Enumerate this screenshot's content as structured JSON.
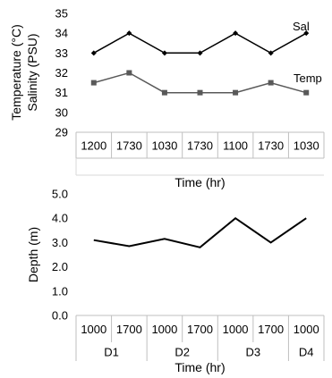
{
  "charts": [
    {
      "chart_data": {
        "type": "line",
        "categories": [
          "1200",
          "1730",
          "1030",
          "1730",
          "1100",
          "1730",
          "1030"
        ],
        "series": [
          {
            "name": "Sal",
            "values": [
              33,
              34,
              33,
              33,
              34,
              33,
              34
            ],
            "marker": "diamond",
            "color": "#000000"
          },
          {
            "name": "Temp",
            "values": [
              31.5,
              32,
              31,
              31,
              31,
              31.5,
              31
            ],
            "marker": "square",
            "color": "#595959"
          }
        ],
        "ylabel_line1": "Temperature (°C)",
        "ylabel_line2": "Salinity (PSU)",
        "xlabel": "Time (hr)",
        "ylim": [
          29,
          35
        ],
        "yticks": [
          "29",
          "30",
          "31",
          "32",
          "33",
          "34",
          "35"
        ],
        "grid": false
      }
    },
    {
      "chart_data": {
        "type": "line",
        "categories": [
          "1000",
          "1700",
          "1000",
          "1700",
          "1000",
          "1700",
          "1000"
        ],
        "groups": [
          "D1",
          "D2",
          "D3",
          "D4"
        ],
        "series": [
          {
            "values": [
              3.1,
              2.85,
              3.15,
              2.8,
              4.0,
              3.0,
              4.0
            ],
            "color": "#000000"
          }
        ],
        "ylabel": "Depth (m)",
        "xlabel": "Time  (hr)",
        "ylim": [
          0,
          5
        ],
        "yticks": [
          "0.0",
          "1.0",
          "2.0",
          "3.0",
          "4.0",
          "5.0"
        ],
        "grid": false
      }
    }
  ]
}
